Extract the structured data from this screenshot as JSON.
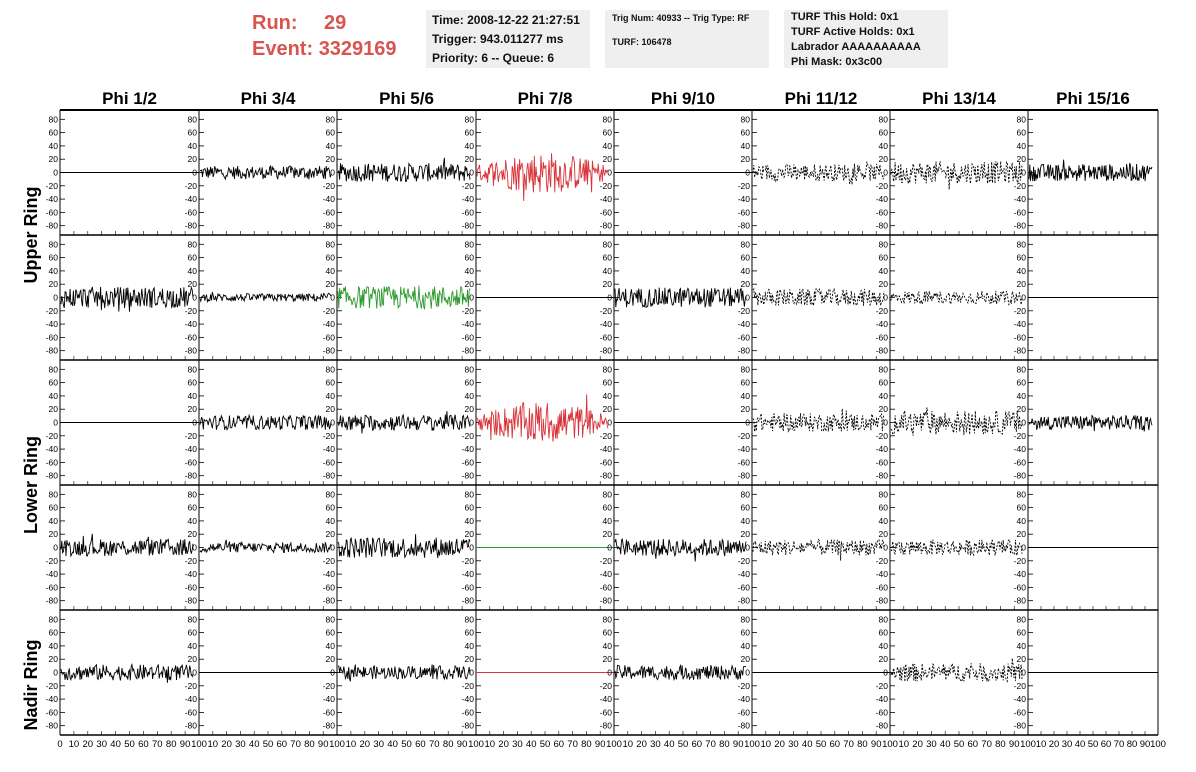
{
  "run": {
    "run_label": "Run:",
    "run_value": "29",
    "event_label": "Event:",
    "event_value": "3329169"
  },
  "info_time": {
    "line1": "Time: 2008-12-22 21:27:51",
    "line2": "Trigger: 943.011277 ms",
    "line3": "Priority: 6 -- Queue: 6"
  },
  "info_trig": {
    "line1": "Trig Num: 40933 -- Trig Type: RF",
    "line2": "TURF: 106478"
  },
  "info_turf": {
    "line1": "TURF This Hold: 0x1",
    "line2": "TURF Active Holds: 0x1",
    "line3": "Labrador AAAAAAAAAA",
    "line4": "Phi Mask: 0x3c00"
  },
  "column_labels": [
    "Phi 1/2",
    "Phi 3/4",
    "Phi 5/6",
    "Phi 7/8",
    "Phi 9/10",
    "Phi 11/12",
    "Phi 13/14",
    "Phi 15/16"
  ],
  "ring_labels": [
    "Upper Ring",
    "Lower Ring",
    "Nadir Ring"
  ],
  "colors": {
    "red": "#d9333a",
    "green": "#2e9a2e",
    "black": "#000000"
  },
  "chart_data": {
    "type": "line",
    "y_ticks": [
      80,
      60,
      40,
      20,
      0,
      -20,
      -40,
      -60,
      -80
    ],
    "ylim": [
      -85,
      85
    ],
    "x_tick_labels_first": [
      "0",
      "10",
      "20",
      "30",
      "40",
      "50",
      "60",
      "70",
      "80",
      "90",
      "100"
    ],
    "x_tick_labels": [
      "10",
      "20",
      "30",
      "40",
      "50",
      "60",
      "70",
      "80",
      "90",
      "100"
    ],
    "xlim": [
      0,
      100
    ],
    "panels": [
      [
        {
          "s": "flat",
          "a": 0,
          "c": "black"
        },
        {
          "s": "solid",
          "a": 10,
          "c": "black"
        },
        {
          "s": "solid",
          "a": 14,
          "c": "black"
        },
        {
          "s": "solid",
          "a": 32,
          "c": "red"
        },
        {
          "s": "flat",
          "a": 0,
          "c": "black"
        },
        {
          "s": "dash",
          "a": 13,
          "c": "black"
        },
        {
          "s": "dash",
          "a": 17,
          "c": "black"
        },
        {
          "s": "solid",
          "a": 13,
          "c": "black"
        }
      ],
      [
        {
          "s": "solid",
          "a": 16,
          "c": "black"
        },
        {
          "s": "solid",
          "a": 6,
          "c": "black"
        },
        {
          "s": "solid",
          "a": 17,
          "c": "green"
        },
        {
          "s": "flat",
          "a": 0,
          "c": "black"
        },
        {
          "s": "solid",
          "a": 15,
          "c": "black"
        },
        {
          "s": "dash",
          "a": 13,
          "c": "black"
        },
        {
          "s": "dash",
          "a": 10,
          "c": "black"
        },
        {
          "s": "flat",
          "a": 0,
          "c": "black"
        }
      ],
      [
        {
          "s": "flat",
          "a": 0,
          "c": "black"
        },
        {
          "s": "solid",
          "a": 11,
          "c": "black"
        },
        {
          "s": "solid",
          "a": 12,
          "c": "black"
        },
        {
          "s": "solid",
          "a": 32,
          "c": "red"
        },
        {
          "s": "flat",
          "a": 0,
          "c": "black"
        },
        {
          "s": "dash",
          "a": 14,
          "c": "black"
        },
        {
          "s": "dash",
          "a": 18,
          "c": "black"
        },
        {
          "s": "solid",
          "a": 11,
          "c": "black"
        }
      ],
      [
        {
          "s": "solid",
          "a": 13,
          "c": "black"
        },
        {
          "s": "solid",
          "a": 8,
          "c": "black"
        },
        {
          "s": "solid",
          "a": 16,
          "c": "black"
        },
        {
          "s": "flat",
          "a": 0,
          "c": "green"
        },
        {
          "s": "solid",
          "a": 13,
          "c": "black"
        },
        {
          "s": "dash",
          "a": 12,
          "c": "black"
        },
        {
          "s": "dash",
          "a": 12,
          "c": "black"
        },
        {
          "s": "flat",
          "a": 0,
          "c": "black"
        }
      ],
      [
        {
          "s": "solid",
          "a": 12,
          "c": "black"
        },
        {
          "s": "flat",
          "a": 0,
          "c": "black"
        },
        {
          "s": "solid",
          "a": 10,
          "c": "black"
        },
        {
          "s": "flat",
          "a": 0,
          "c": "red"
        },
        {
          "s": "solid",
          "a": 11,
          "c": "black"
        },
        {
          "s": "flat",
          "a": 0,
          "c": "black"
        },
        {
          "s": "dash",
          "a": 14,
          "c": "black"
        },
        {
          "s": "flat",
          "a": 0,
          "c": "black"
        }
      ]
    ]
  }
}
